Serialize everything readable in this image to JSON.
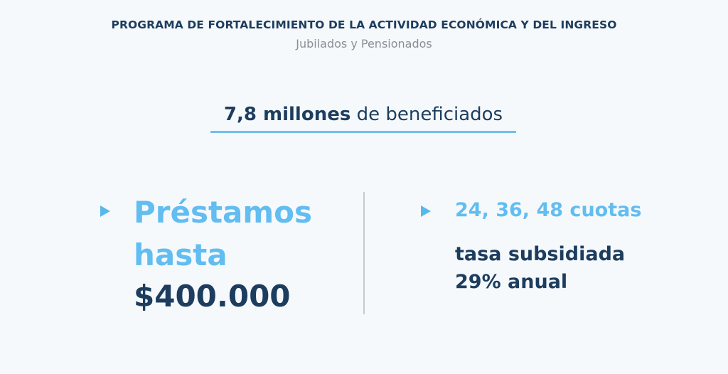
{
  "header": {
    "title": "PROGRAMA DE FORTALECIMIENTO DE LA ACTIVIDAD ECONÓMICA Y DEL INGRESO",
    "subtitle": "Jubilados y Pensionados"
  },
  "headline": {
    "strong": "7,8 millones",
    "rest": " de beneficiados"
  },
  "left_panel": {
    "icon": "triangle-right-icon",
    "line1": "Préstamos",
    "line2": "hasta",
    "amount": "$400.000"
  },
  "right_panel": {
    "icon": "triangle-right-icon",
    "cuotas": "24, 36, 48 cuotas",
    "tasa_line1": "tasa subsidiada",
    "tasa_line2": "29% anual"
  },
  "colors": {
    "navy": "#1d3d5e",
    "light_blue": "#62bdf0",
    "gray": "#8a8f96",
    "background": "#f6f9fc"
  }
}
